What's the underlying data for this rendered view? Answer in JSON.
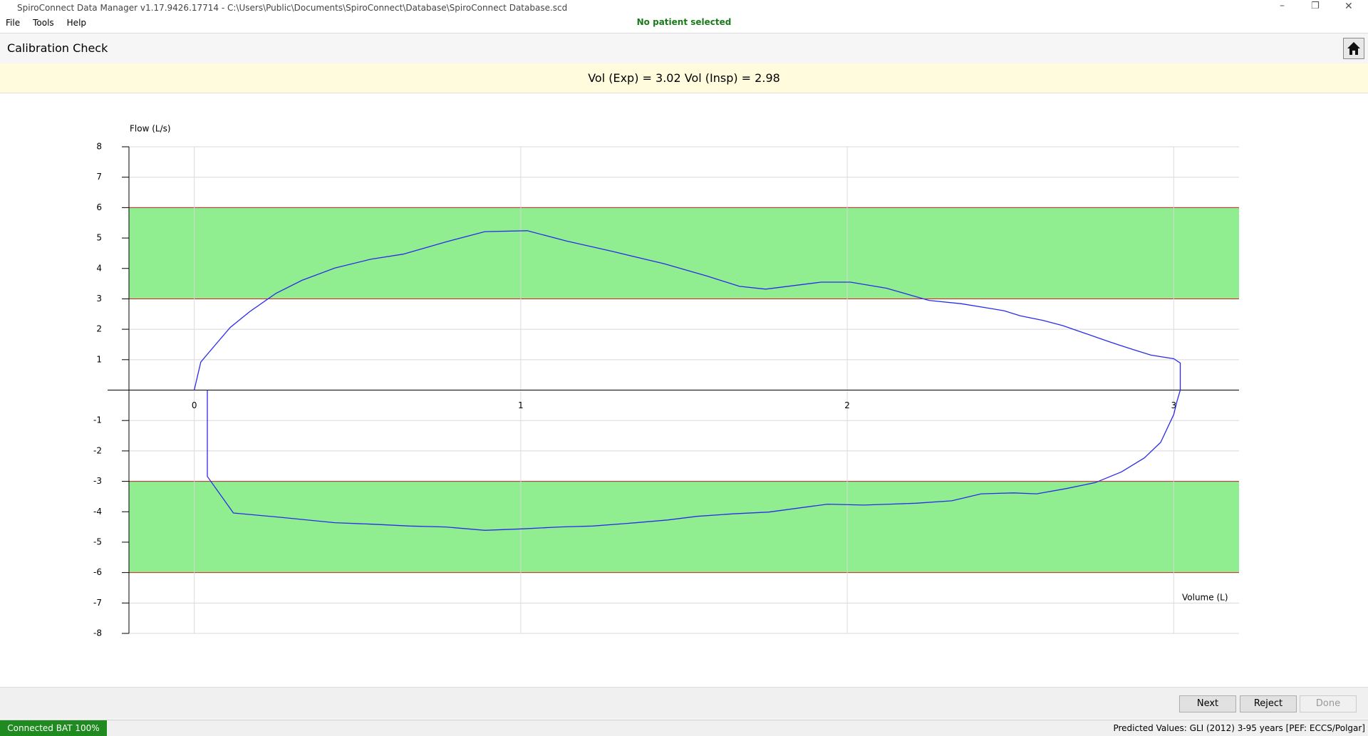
{
  "window": {
    "title": "SpiroConnect Data Manager v1.17.9426.17714 - C:\\Users\\Public\\Documents\\SpiroConnect\\Database\\SpiroConnect Database.scd",
    "patient": "No patient selected"
  },
  "menu": [
    "File",
    "Tools",
    "Help"
  ],
  "page_title": "Calibration Check",
  "summary": "Vol (Exp) = 3.02 Vol (Insp) = 2.98",
  "chart_data": {
    "type": "line",
    "y_label": "Flow (L/s)",
    "x_label": "Volume (L)",
    "xlim": [
      -0.2,
      3.2
    ],
    "ylim": [
      -8,
      8
    ],
    "xticks": [
      0,
      1,
      2,
      3
    ],
    "yticks": [
      -8,
      -7,
      -6,
      -5,
      -4,
      -3,
      -2,
      -1,
      1,
      2,
      3,
      4,
      5,
      6,
      7,
      8
    ],
    "grid": true,
    "band_color": "#90ee90",
    "band_edge_color": "#cc2222",
    "bands": [
      {
        "from": 3,
        "to": 6
      },
      {
        "from": -6,
        "to": -3
      }
    ],
    "series": [
      {
        "color": "#2a2aee",
        "x": [
          0,
          0.02,
          0.06,
          0.11,
          0.17,
          0.25,
          0.33,
          0.43,
          0.54,
          0.64,
          0.77,
          0.89,
          1.02,
          1.14,
          1.28,
          1.44,
          1.57,
          1.67,
          1.75,
          1.92,
          2.01,
          2.12,
          2.25,
          2.35,
          2.48,
          2.53,
          2.6,
          2.66,
          2.73,
          2.8,
          2.83,
          2.88,
          2.93,
          3.0,
          3.02,
          3.02,
          3.01,
          3.0,
          2.96,
          2.91,
          2.84,
          2.76,
          2.67,
          2.58,
          2.51,
          2.41,
          2.32,
          2.21,
          2.13,
          2.05,
          1.94,
          1.76,
          1.65,
          1.54,
          1.45,
          1.33,
          1.22,
          1.12,
          1.01,
          0.89,
          0.77,
          0.66,
          0.55,
          0.43,
          0.26,
          0.12,
          0.04,
          0.04
        ],
        "values": [
          0,
          0.92,
          1.43,
          2.06,
          2.58,
          3.18,
          3.61,
          4.01,
          4.3,
          4.47,
          4.87,
          5.21,
          5.24,
          4.9,
          4.56,
          4.15,
          3.75,
          3.41,
          3.32,
          3.55,
          3.55,
          3.35,
          2.95,
          2.84,
          2.61,
          2.44,
          2.29,
          2.12,
          1.86,
          1.6,
          1.49,
          1.32,
          1.15,
          1.03,
          0.89,
          0,
          -0.37,
          -0.8,
          -1.72,
          -2.23,
          -2.69,
          -3.04,
          -3.24,
          -3.41,
          -3.38,
          -3.41,
          -3.64,
          -3.72,
          -3.75,
          -3.78,
          -3.75,
          -4.01,
          -4.07,
          -4.15,
          -4.27,
          -4.38,
          -4.47,
          -4.5,
          -4.56,
          -4.61,
          -4.5,
          -4.47,
          -4.41,
          -4.36,
          -4.18,
          -4.04,
          -2.84,
          0
        ]
      }
    ]
  },
  "buttons": [
    "Next",
    "Reject",
    "Done"
  ],
  "status": {
    "connection": "Connected BAT 100%",
    "predicted": "Predicted Values: GLI (2012) 3-95 years [PEF: ECCS/Polgar]"
  }
}
